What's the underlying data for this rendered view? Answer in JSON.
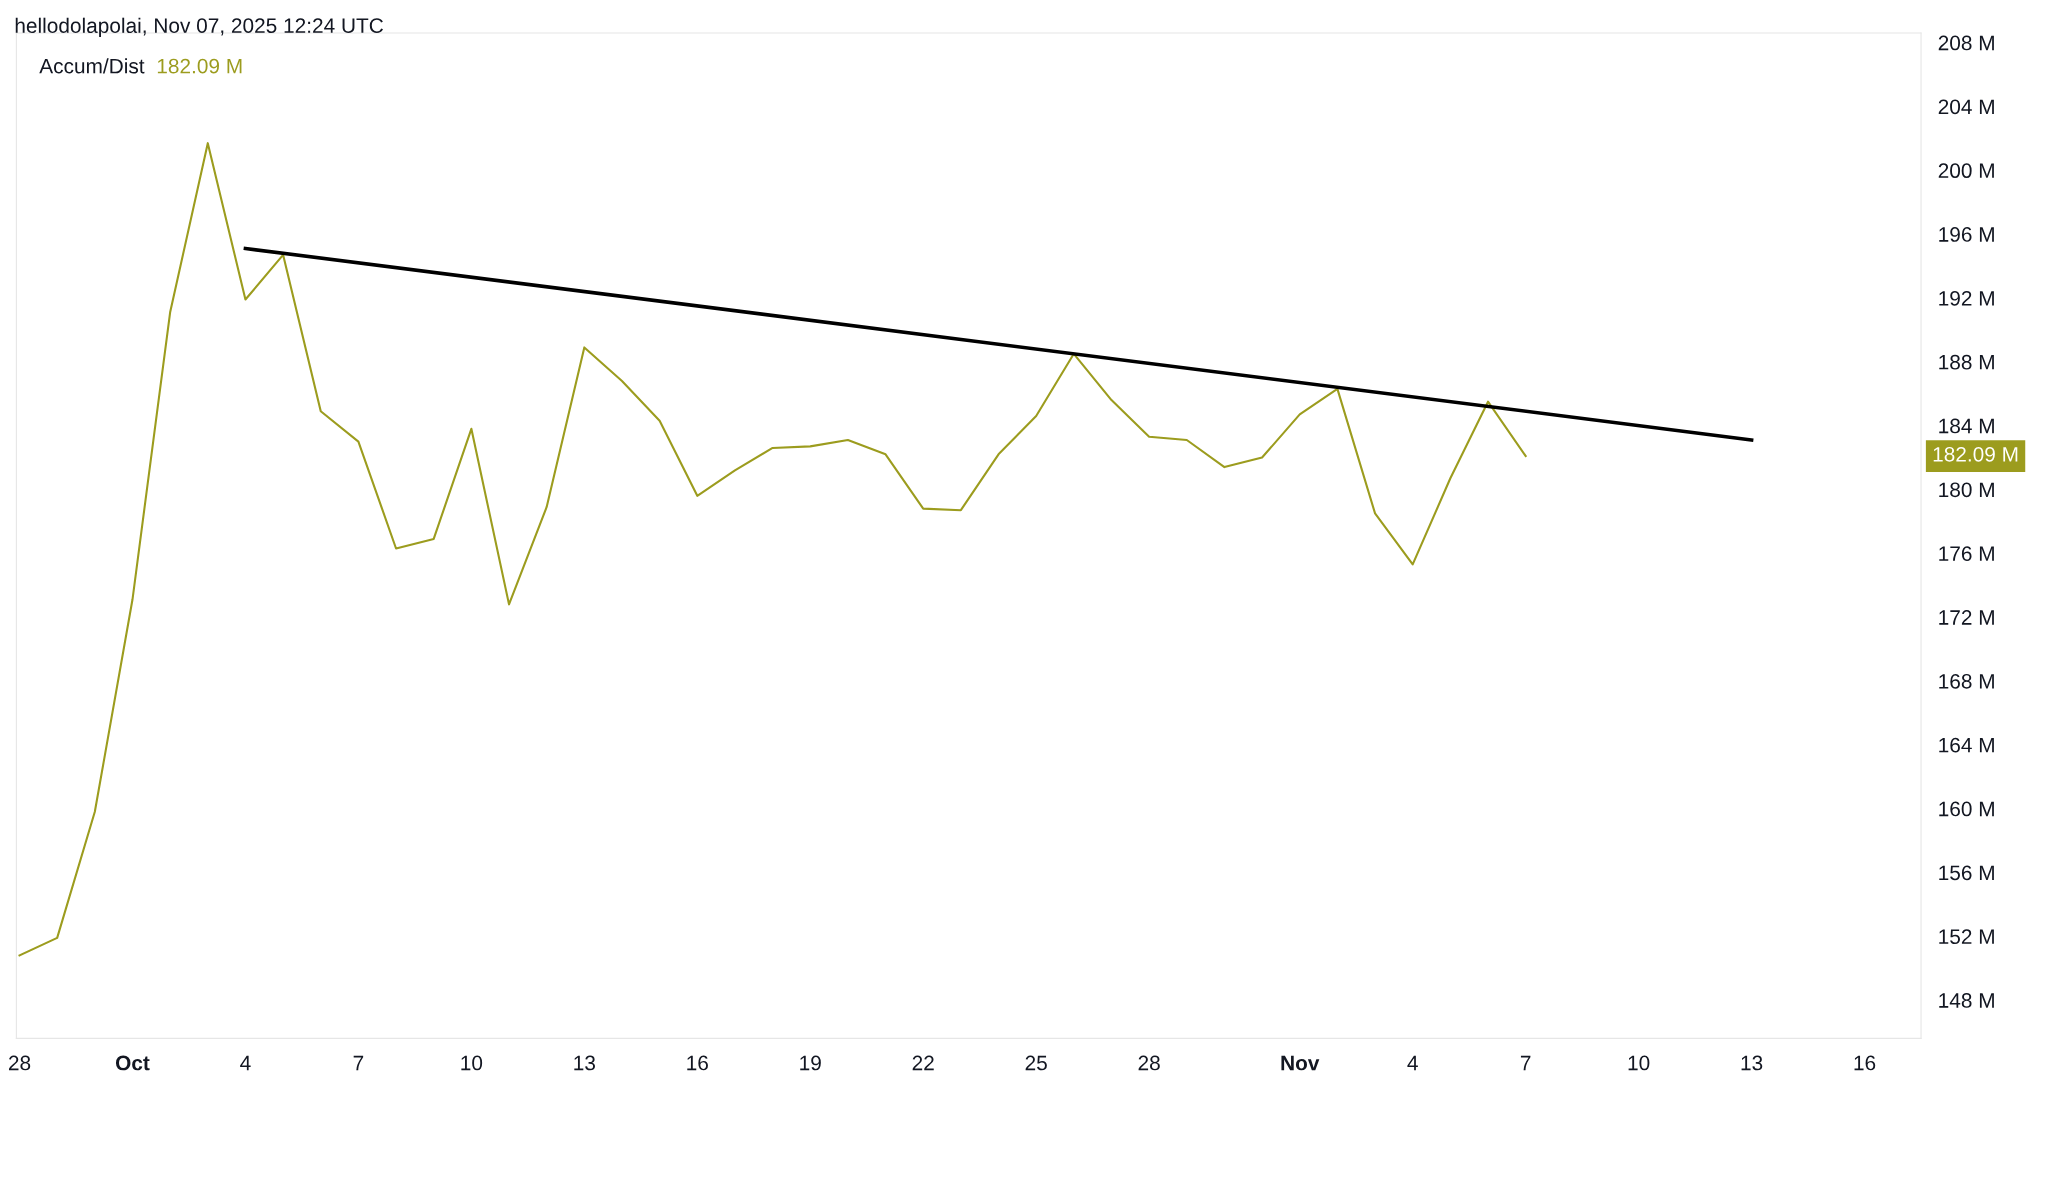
{
  "chart_data": {
    "type": "line",
    "subtitle": "hellodolapolai, Nov 07, 2025 12:24 UTC",
    "x": [
      "2025-09-28",
      "2025-09-29",
      "2025-09-30",
      "2025-10-01",
      "2025-10-02",
      "2025-10-03",
      "2025-10-04",
      "2025-10-05",
      "2025-10-06",
      "2025-10-07",
      "2025-10-08",
      "2025-10-09",
      "2025-10-10",
      "2025-10-11",
      "2025-10-12",
      "2025-10-13",
      "2025-10-14",
      "2025-10-15",
      "2025-10-16",
      "2025-10-17",
      "2025-10-18",
      "2025-10-19",
      "2025-10-20",
      "2025-10-21",
      "2025-10-22",
      "2025-10-23",
      "2025-10-24",
      "2025-10-25",
      "2025-10-26",
      "2025-10-27",
      "2025-10-28",
      "2025-10-29",
      "2025-10-30",
      "2025-10-31",
      "2025-11-01",
      "2025-11-02",
      "2025-11-03",
      "2025-11-04",
      "2025-11-05",
      "2025-11-06",
      "2025-11-07"
    ],
    "series": [
      {
        "name": "Accum/Dist",
        "color": "#9c9c1e",
        "values": [
          150.8,
          151.9,
          159.8,
          173.1,
          191.1,
          201.7,
          191.9,
          194.7,
          184.9,
          183.0,
          176.3,
          176.9,
          183.8,
          172.8,
          178.9,
          188.9,
          186.8,
          184.3,
          179.6,
          181.2,
          182.6,
          182.7,
          183.1,
          182.2,
          178.8,
          178.7,
          182.2,
          184.6,
          188.5,
          185.6,
          183.3,
          183.1,
          181.4,
          182.0,
          184.7,
          186.3,
          178.5,
          175.3,
          180.7,
          185.5,
          182.09
        ]
      },
      {
        "type": "line",
        "color": "#000000",
        "x": [
          "2025-10-04",
          "2025-11-13"
        ],
        "values": [
          195.1,
          183.1
        ]
      }
    ],
    "annotations": [
      "182.09 M",
      "182.09 M"
    ],
    "xlim": [
      "2025-09-27T22:00",
      "2025-11-17T12:00"
    ],
    "xticks": [
      {
        "value": "2025-09-28",
        "label": "28"
      },
      {
        "value": "2025-10-01",
        "label": "Oct"
      },
      {
        "value": "2025-10-04",
        "label": "4"
      },
      {
        "value": "2025-10-07",
        "label": "7"
      },
      {
        "value": "2025-10-10",
        "label": "10"
      },
      {
        "value": "2025-10-13",
        "label": "13"
      },
      {
        "value": "2025-10-16",
        "label": "16"
      },
      {
        "value": "2025-10-19",
        "label": "19"
      },
      {
        "value": "2025-10-22",
        "label": "22"
      },
      {
        "value": "2025-10-25",
        "label": "25"
      },
      {
        "value": "2025-10-28",
        "label": "28"
      },
      {
        "value": "2025-11-01",
        "label": "Nov"
      },
      {
        "value": "2025-11-04",
        "label": "4"
      },
      {
        "value": "2025-11-07",
        "label": "7"
      },
      {
        "value": "2025-11-10",
        "label": "10"
      },
      {
        "value": "2025-11-13",
        "label": "13"
      },
      {
        "value": "2025-11-16",
        "label": "16"
      }
    ],
    "ylim": [
      145.6,
      208.6
    ],
    "yticks": [
      {
        "value": 148,
        "label": "148 M"
      },
      {
        "value": 152,
        "label": "152 M"
      },
      {
        "value": 156,
        "label": "156 M"
      },
      {
        "value": 160,
        "label": "160 M"
      },
      {
        "value": 164,
        "label": "164 M"
      },
      {
        "value": 168,
        "label": "168 M"
      },
      {
        "value": 172,
        "label": "172 M"
      },
      {
        "value": 176,
        "label": "176 M"
      },
      {
        "value": 180,
        "label": "180 M"
      },
      {
        "value": 184,
        "label": "184 M"
      },
      {
        "value": 188,
        "label": "188 M"
      },
      {
        "value": 192,
        "label": "192 M"
      },
      {
        "value": 196,
        "label": "196 M"
      },
      {
        "value": 200,
        "label": "200 M"
      },
      {
        "value": 204,
        "label": "204 M"
      },
      {
        "value": 208,
        "label": "208 M"
      }
    ],
    "grid": false,
    "legend": "top left",
    "marker": "none",
    "line_style": "solid"
  }
}
